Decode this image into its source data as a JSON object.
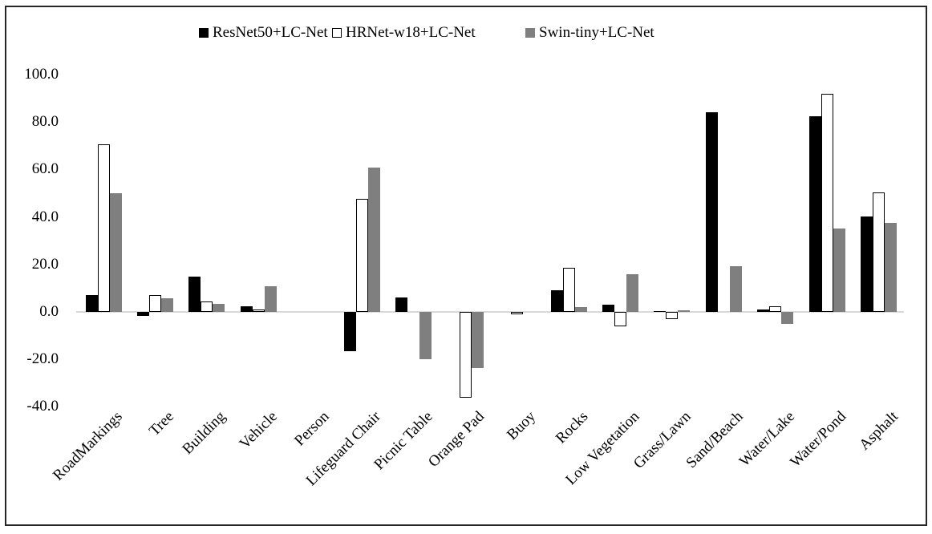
{
  "figure": {
    "background": "#ffffff",
    "frame_border_color": "#262626"
  },
  "chart_data": {
    "type": "bar",
    "title": "",
    "xlabel": "",
    "ylabel": "",
    "ylim": [
      -40,
      100
    ],
    "ytick_step": 20,
    "grid": false,
    "legend_position": "top-center",
    "axis_line_color": "#d9d9d9",
    "plot_background": "#ffffff",
    "yticks": [
      {
        "value": 100,
        "label": "100.0"
      },
      {
        "value": 80,
        "label": "80.0"
      },
      {
        "value": 60,
        "label": "60.0"
      },
      {
        "value": 40,
        "label": "40.0"
      },
      {
        "value": 20,
        "label": "20.0"
      },
      {
        "value": 0,
        "label": "0.0"
      },
      {
        "value": -20,
        "label": "-20.0"
      },
      {
        "value": -40,
        "label": "-40.0"
      }
    ],
    "categories": [
      "RoadMarkings",
      "Tree",
      "Building",
      "Vehicle",
      "Person",
      "Lifeguard Chair",
      "Picnic Table",
      "Orange Pad",
      "Buoy",
      "Rocks",
      "Low Vegetation",
      "Grass/Lawn",
      "Sand/Beach",
      "Water/Lake",
      "Water/Pond",
      "Asphalt"
    ],
    "series": [
      {
        "name": "ResNet50+LC-Net",
        "color": "#000000",
        "style": "solid",
        "values": [
          7.2,
          -1.8,
          14.8,
          2.5,
          0,
          -16.4,
          6.0,
          0,
          0,
          9.0,
          3.2,
          0.5,
          84.0,
          1.0,
          82.3,
          40.1
        ]
      },
      {
        "name": "HRNet-w18+LC-Net",
        "color": "#ffffff",
        "border_color": "#000000",
        "style": "outline",
        "values": [
          70.5,
          7.2,
          4.3,
          1.0,
          0,
          47.7,
          0,
          -36.3,
          -1.0,
          18.5,
          -6.2,
          -2.9,
          0,
          2.5,
          91.9,
          50.5
        ]
      },
      {
        "name": "Swin-tiny+LC-Net",
        "color": "#7f7f7f",
        "style": "solid",
        "values": [
          50.0,
          5.8,
          3.5,
          10.8,
          0,
          60.7,
          -20.1,
          -23.8,
          0,
          1.9,
          16.0,
          0.8,
          19.4,
          -5.2,
          35.0,
          37.6
        ]
      }
    ]
  }
}
